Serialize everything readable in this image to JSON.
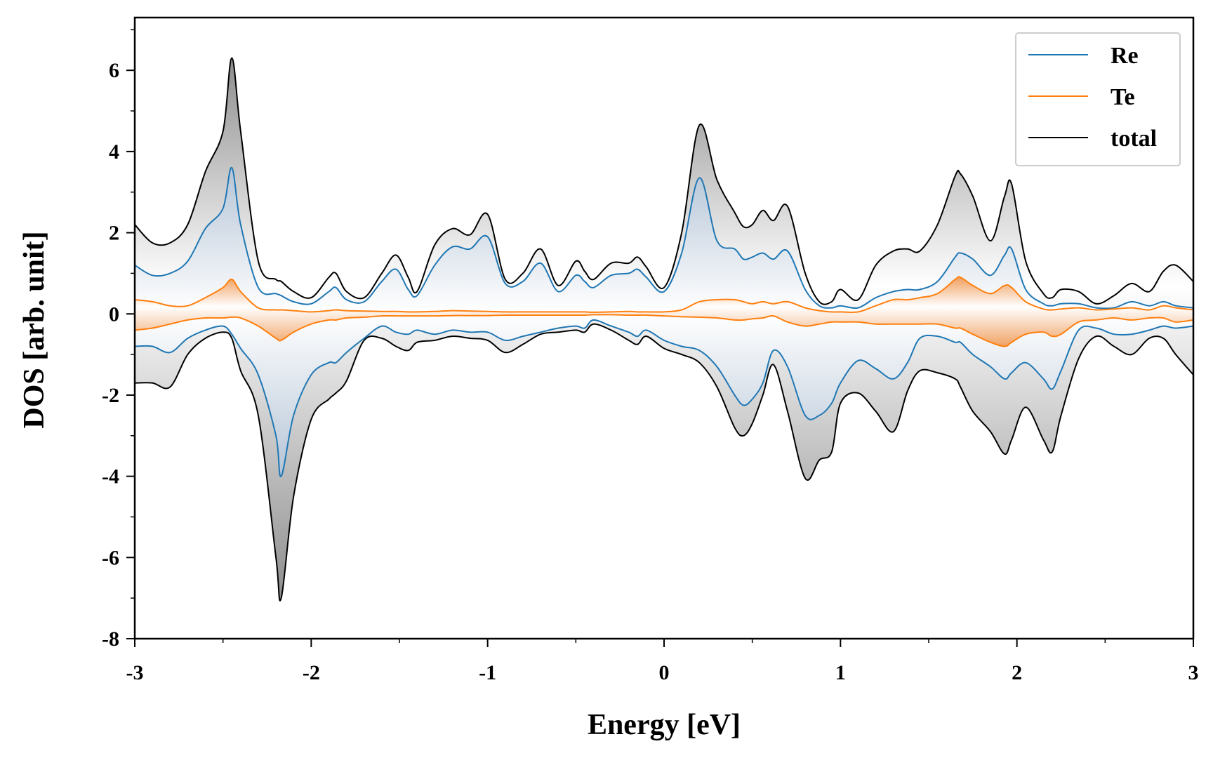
{
  "chart_data": {
    "type": "line",
    "xlabel": "Energy [eV]",
    "ylabel": "DOS [arb. unit]",
    "xlim": [
      -3,
      3
    ],
    "ylim": [
      -8,
      7.3
    ],
    "xticks": [
      "-3",
      "-2",
      "-1",
      "0",
      "1",
      "2",
      "3"
    ],
    "xtick_values": [
      -3,
      -2,
      -1,
      0,
      1,
      2,
      3
    ],
    "yticks": [
      "-8",
      "-6",
      "-4",
      "-2",
      "0",
      "2",
      "4",
      "6"
    ],
    "ytick_values": [
      -8,
      -6,
      -4,
      -2,
      0,
      2,
      4,
      6
    ],
    "grid": false,
    "legend_position": "top-right",
    "legend": [
      "Re",
      "Te",
      "total"
    ],
    "colors": {
      "Re": "#1f77b4",
      "Te": "#ff7f0e",
      "total": "#000000"
    },
    "x": [
      -3.0,
      -2.9,
      -2.8,
      -2.7,
      -2.6,
      -2.5,
      -2.45,
      -2.4,
      -2.3,
      -2.2,
      -2.17,
      -2.1,
      -2.0,
      -1.9,
      -1.86,
      -1.8,
      -1.7,
      -1.6,
      -1.52,
      -1.45,
      -1.4,
      -1.3,
      -1.2,
      -1.1,
      -1.0,
      -0.9,
      -0.8,
      -0.7,
      -0.6,
      -0.5,
      -0.45,
      -0.4,
      -0.3,
      -0.2,
      -0.15,
      -0.1,
      0.0,
      0.1,
      0.2,
      0.3,
      0.4,
      0.45,
      0.5,
      0.56,
      0.62,
      0.7,
      0.8,
      0.88,
      0.95,
      1.0,
      1.1,
      1.2,
      1.3,
      1.38,
      1.45,
      1.55,
      1.65,
      1.68,
      1.75,
      1.85,
      1.93,
      1.97,
      2.05,
      2.15,
      2.2,
      2.25,
      2.35,
      2.45,
      2.55,
      2.65,
      2.75,
      2.83,
      2.9,
      3.0
    ],
    "series": [
      {
        "name": "Re",
        "spin_up": [
          1.2,
          0.95,
          1.0,
          1.3,
          2.1,
          2.6,
          3.6,
          2.2,
          0.65,
          0.5,
          0.45,
          0.3,
          0.25,
          0.55,
          0.65,
          0.35,
          0.3,
          0.8,
          1.1,
          0.6,
          0.45,
          1.2,
          1.65,
          1.6,
          1.9,
          0.75,
          0.8,
          1.25,
          0.55,
          0.95,
          0.8,
          0.65,
          0.95,
          1.0,
          1.1,
          0.9,
          0.55,
          1.5,
          3.35,
          1.8,
          1.6,
          1.35,
          1.4,
          1.5,
          1.35,
          1.55,
          0.6,
          0.2,
          0.15,
          0.2,
          0.15,
          0.4,
          0.55,
          0.6,
          0.6,
          0.8,
          1.4,
          1.5,
          1.35,
          0.95,
          1.45,
          1.6,
          0.6,
          0.25,
          0.2,
          0.25,
          0.25,
          0.15,
          0.15,
          0.3,
          0.2,
          0.3,
          0.2,
          0.15
        ],
        "spin_down": [
          -0.8,
          -0.8,
          -0.95,
          -0.6,
          -0.4,
          -0.3,
          -0.5,
          -0.85,
          -1.5,
          -3.0,
          -4.0,
          -2.5,
          -1.5,
          -1.2,
          -1.2,
          -0.95,
          -0.6,
          -0.3,
          -0.45,
          -0.5,
          -0.4,
          -0.5,
          -0.4,
          -0.45,
          -0.45,
          -0.65,
          -0.55,
          -0.45,
          -0.35,
          -0.3,
          -0.35,
          -0.15,
          -0.3,
          -0.45,
          -0.55,
          -0.4,
          -0.65,
          -0.8,
          -0.9,
          -1.3,
          -2.0,
          -2.25,
          -2.1,
          -1.7,
          -0.9,
          -1.3,
          -2.5,
          -2.5,
          -2.2,
          -1.7,
          -1.15,
          -1.35,
          -1.6,
          -1.2,
          -0.6,
          -0.55,
          -0.7,
          -0.7,
          -1.0,
          -1.3,
          -1.6,
          -1.45,
          -1.2,
          -1.6,
          -1.85,
          -1.4,
          -0.4,
          -0.35,
          -0.5,
          -0.5,
          -0.4,
          -0.3,
          -0.35,
          -0.3
        ]
      },
      {
        "name": "Te",
        "spin_up": [
          0.35,
          0.3,
          0.2,
          0.2,
          0.4,
          0.65,
          0.85,
          0.55,
          0.15,
          0.1,
          0.1,
          0.08,
          0.05,
          0.08,
          0.1,
          0.08,
          0.07,
          0.06,
          0.06,
          0.05,
          0.05,
          0.06,
          0.08,
          0.07,
          0.06,
          0.05,
          0.05,
          0.05,
          0.05,
          0.05,
          0.05,
          0.04,
          0.05,
          0.06,
          0.05,
          0.05,
          0.05,
          0.1,
          0.3,
          0.35,
          0.35,
          0.3,
          0.25,
          0.3,
          0.25,
          0.3,
          0.15,
          0.08,
          0.05,
          0.05,
          0.05,
          0.2,
          0.35,
          0.35,
          0.4,
          0.5,
          0.85,
          0.9,
          0.7,
          0.5,
          0.7,
          0.65,
          0.3,
          0.12,
          0.1,
          0.12,
          0.15,
          0.1,
          0.12,
          0.15,
          0.1,
          0.2,
          0.15,
          0.1
        ],
        "spin_down": [
          -0.4,
          -0.35,
          -0.25,
          -0.15,
          -0.1,
          -0.1,
          -0.08,
          -0.1,
          -0.3,
          -0.6,
          -0.65,
          -0.45,
          -0.25,
          -0.15,
          -0.15,
          -0.1,
          -0.08,
          -0.05,
          -0.05,
          -0.05,
          -0.05,
          -0.05,
          -0.04,
          -0.04,
          -0.04,
          -0.03,
          -0.03,
          -0.03,
          -0.03,
          -0.03,
          -0.03,
          -0.02,
          -0.02,
          -0.03,
          -0.03,
          -0.03,
          -0.05,
          -0.07,
          -0.08,
          -0.1,
          -0.15,
          -0.15,
          -0.12,
          -0.1,
          -0.05,
          -0.2,
          -0.3,
          -0.25,
          -0.2,
          -0.2,
          -0.2,
          -0.25,
          -0.25,
          -0.25,
          -0.25,
          -0.25,
          -0.35,
          -0.35,
          -0.5,
          -0.7,
          -0.8,
          -0.7,
          -0.5,
          -0.45,
          -0.55,
          -0.5,
          -0.2,
          -0.15,
          -0.1,
          -0.15,
          -0.1,
          -0.1,
          -0.2,
          -0.15
        ]
      },
      {
        "name": "total",
        "spin_up": [
          2.2,
          1.75,
          1.75,
          2.2,
          3.5,
          4.5,
          6.3,
          4.5,
          1.3,
          0.85,
          0.8,
          0.55,
          0.4,
          0.9,
          1.0,
          0.55,
          0.4,
          1.0,
          1.45,
          0.9,
          0.55,
          1.7,
          2.1,
          1.95,
          2.45,
          0.85,
          1.0,
          1.6,
          0.7,
          1.3,
          1.05,
          0.85,
          1.25,
          1.25,
          1.4,
          1.15,
          0.65,
          2.0,
          4.65,
          3.3,
          2.5,
          2.15,
          2.2,
          2.55,
          2.3,
          2.65,
          1.0,
          0.3,
          0.3,
          0.6,
          0.35,
          1.2,
          1.55,
          1.6,
          1.55,
          2.2,
          3.4,
          3.45,
          2.9,
          1.8,
          2.9,
          3.2,
          1.3,
          0.5,
          0.4,
          0.6,
          0.55,
          0.25,
          0.45,
          0.75,
          0.55,
          1.05,
          1.2,
          0.8
        ],
        "spin_down": [
          -1.7,
          -1.7,
          -1.8,
          -1.0,
          -0.6,
          -0.45,
          -0.6,
          -1.4,
          -2.5,
          -6.0,
          -7.0,
          -4.5,
          -2.6,
          -2.1,
          -1.95,
          -1.65,
          -0.65,
          -0.6,
          -0.8,
          -0.9,
          -0.7,
          -0.65,
          -0.55,
          -0.6,
          -0.65,
          -0.95,
          -0.75,
          -0.5,
          -0.45,
          -0.4,
          -0.45,
          -0.25,
          -0.4,
          -0.65,
          -0.75,
          -0.55,
          -0.85,
          -1.0,
          -1.2,
          -1.8,
          -2.8,
          -3.0,
          -2.7,
          -2.0,
          -1.25,
          -2.4,
          -4.05,
          -3.6,
          -3.4,
          -2.2,
          -1.95,
          -2.4,
          -2.9,
          -1.9,
          -1.4,
          -1.45,
          -1.6,
          -1.8,
          -2.4,
          -2.9,
          -3.45,
          -3.1,
          -2.3,
          -3.1,
          -3.4,
          -2.5,
          -1.1,
          -0.55,
          -0.8,
          -1.0,
          -0.6,
          -0.6,
          -1.0,
          -1.5
        ]
      }
    ]
  }
}
